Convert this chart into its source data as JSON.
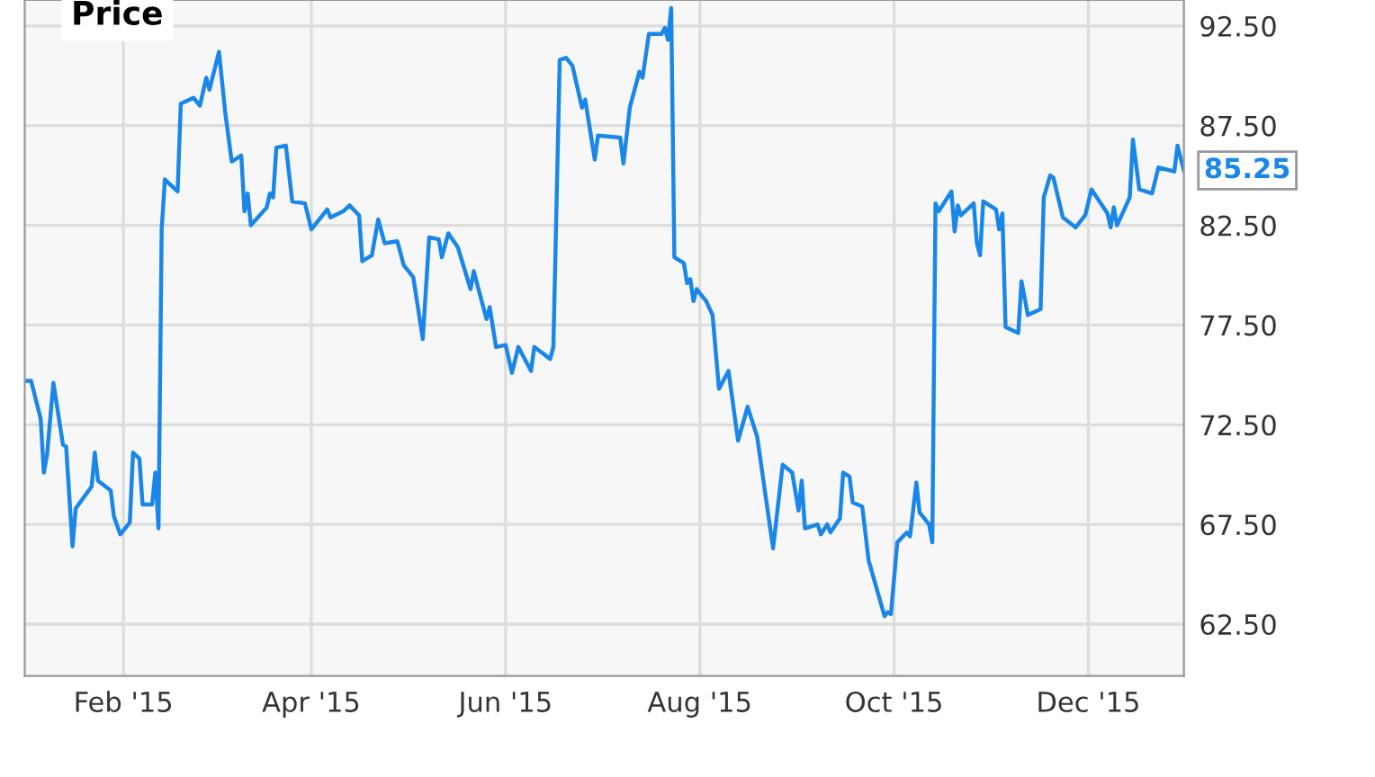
{
  "chart_data": {
    "type": "line",
    "title": "Price",
    "x": [
      "2015-01-01",
      "2015-01-03",
      "2015-01-06",
      "2015-01-07",
      "2015-01-08",
      "2015-01-10",
      "2015-01-13",
      "2015-01-14",
      "2015-01-16",
      "2015-01-17",
      "2015-01-22",
      "2015-01-23",
      "2015-01-24",
      "2015-01-28",
      "2015-01-29",
      "2015-01-31",
      "2015-02-03",
      "2015-02-04",
      "2015-02-06",
      "2015-02-07",
      "2015-02-10",
      "2015-02-11",
      "2015-02-12",
      "2015-02-13",
      "2015-02-14",
      "2015-02-18",
      "2015-02-19",
      "2015-02-23",
      "2015-02-25",
      "2015-02-27",
      "2015-02-28",
      "2015-03-03",
      "2015-03-05",
      "2015-03-07",
      "2015-03-10",
      "2015-03-11",
      "2015-03-12",
      "2015-03-13",
      "2015-03-18",
      "2015-03-19",
      "2015-03-20",
      "2015-03-21",
      "2015-03-24",
      "2015-03-26",
      "2015-03-30",
      "2015-04-01",
      "2015-04-06",
      "2015-04-07",
      "2015-04-11",
      "2015-04-13",
      "2015-04-16",
      "2015-04-17",
      "2015-04-20",
      "2015-04-22",
      "2015-04-24",
      "2015-04-28",
      "2015-04-30",
      "2015-05-03",
      "2015-05-06",
      "2015-05-08",
      "2015-05-11",
      "2015-05-12",
      "2015-05-14",
      "2015-05-17",
      "2015-05-21",
      "2015-05-22",
      "2015-05-26",
      "2015-05-27",
      "2015-05-29",
      "2015-06-01",
      "2015-06-03",
      "2015-06-05",
      "2015-06-09",
      "2015-06-10",
      "2015-06-15",
      "2015-06-16",
      "2015-06-18",
      "2015-06-20",
      "2015-06-22",
      "2015-06-25",
      "2015-06-26",
      "2015-06-29",
      "2015-06-30",
      "2015-07-07",
      "2015-07-08",
      "2015-07-10",
      "2015-07-13",
      "2015-07-14",
      "2015-07-16",
      "2015-07-20",
      "2015-07-21",
      "2015-07-22",
      "2015-07-23",
      "2015-07-24",
      "2015-07-27",
      "2015-07-28",
      "2015-07-29",
      "2015-07-30",
      "2015-07-31",
      "2015-08-03",
      "2015-08-05",
      "2015-08-07",
      "2015-08-10",
      "2015-08-13",
      "2015-08-16",
      "2015-08-19",
      "2015-08-24",
      "2015-08-27",
      "2015-08-30",
      "2015-09-01",
      "2015-09-02",
      "2015-09-03",
      "2015-09-07",
      "2015-09-08",
      "2015-09-10",
      "2015-09-11",
      "2015-09-14",
      "2015-09-15",
      "2015-09-17",
      "2015-09-18",
      "2015-09-21",
      "2015-09-23",
      "2015-09-28",
      "2015-09-29",
      "2015-09-30",
      "2015-10-02",
      "2015-10-05",
      "2015-10-06",
      "2015-10-08",
      "2015-10-09",
      "2015-10-12",
      "2015-10-13",
      "2015-10-14",
      "2015-10-15",
      "2015-10-19",
      "2015-10-20",
      "2015-10-21",
      "2015-10-22",
      "2015-10-26",
      "2015-10-27",
      "2015-10-28",
      "2015-10-29",
      "2015-11-02",
      "2015-11-03",
      "2015-11-04",
      "2015-11-05",
      "2015-11-09",
      "2015-11-10",
      "2015-11-12",
      "2015-11-16",
      "2015-11-17",
      "2015-11-19",
      "2015-11-20",
      "2015-11-23",
      "2015-11-27",
      "2015-11-30",
      "2015-12-02",
      "2015-12-07",
      "2015-12-08",
      "2015-12-09",
      "2015-12-10",
      "2015-12-14",
      "2015-12-15",
      "2015-12-17",
      "2015-12-21",
      "2015-12-23",
      "2015-12-28",
      "2015-12-29",
      "2015-12-31"
    ],
    "series": [
      {
        "color": "#1a87e8",
        "values": [
          74.7,
          74.7,
          72.8,
          70.1,
          71.0,
          74.6,
          71.5,
          71.4,
          66.4,
          68.3,
          69.4,
          71.1,
          69.7,
          69.2,
          67.9,
          67.0,
          67.6,
          71.1,
          70.8,
          68.5,
          68.5,
          70.1,
          67.3,
          82.3,
          84.8,
          84.2,
          88.6,
          88.9,
          88.5,
          89.9,
          89.3,
          91.2,
          88.1,
          85.7,
          86.0,
          83.2,
          84.1,
          82.5,
          83.4,
          84.1,
          83.9,
          86.4,
          86.5,
          83.7,
          83.6,
          82.3,
          83.3,
          82.9,
          83.2,
          83.5,
          83.0,
          80.7,
          81.0,
          82.8,
          81.6,
          81.7,
          80.5,
          79.9,
          76.8,
          81.9,
          81.8,
          80.9,
          82.1,
          81.4,
          79.3,
          80.2,
          77.8,
          78.4,
          76.4,
          76.5,
          75.1,
          76.4,
          75.2,
          76.4,
          75.8,
          76.4,
          90.8,
          90.9,
          90.5,
          88.4,
          88.8,
          85.8,
          87.0,
          86.9,
          85.6,
          88.4,
          90.2,
          89.9,
          92.1,
          92.1,
          92.4,
          91.8,
          93.4,
          80.9,
          80.6,
          79.6,
          79.8,
          78.7,
          79.3,
          78.7,
          78.0,
          74.3,
          75.2,
          71.7,
          73.4,
          71.9,
          66.3,
          70.5,
          70.1,
          68.2,
          69.7,
          67.3,
          67.5,
          67.0,
          67.5,
          67.1,
          67.8,
          70.1,
          69.9,
          68.6,
          68.4,
          65.7,
          62.9,
          63.1,
          63.0,
          66.6,
          67.1,
          66.9,
          69.6,
          68.1,
          67.5,
          66.6,
          83.6,
          83.2,
          84.2,
          82.2,
          83.5,
          83.0,
          83.6,
          81.6,
          81.0,
          83.7,
          83.3,
          82.3,
          83.1,
          77.4,
          77.1,
          79.7,
          78.0,
          78.3,
          83.9,
          85.0,
          84.9,
          82.9,
          82.4,
          83.0,
          84.3,
          83.1,
          82.4,
          83.4,
          82.5,
          83.9,
          86.8,
          84.3,
          84.1,
          85.4,
          85.2,
          86.5,
          85.25
        ]
      }
    ],
    "annotations": [
      {
        "text": "85.25",
        "x": "2015-12-31",
        "y": 85.25
      }
    ],
    "xlim": [
      "2015-01-01",
      "2015-12-31"
    ],
    "xticks": [
      {
        "value": "2015-02-01",
        "label": "Feb '15"
      },
      {
        "value": "2015-04-01",
        "label": "Apr '15"
      },
      {
        "value": "2015-06-01",
        "label": "Jun '15"
      },
      {
        "value": "2015-08-01",
        "label": "Aug '15"
      },
      {
        "value": "2015-10-01",
        "label": "Oct '15"
      },
      {
        "value": "2015-12-01",
        "label": "Dec '15"
      }
    ],
    "ylim": [
      59.9,
      93.8
    ],
    "yticks": [
      {
        "value": 62.5,
        "label": "62.50"
      },
      {
        "value": 67.5,
        "label": "67.50"
      },
      {
        "value": 72.5,
        "label": "72.50"
      },
      {
        "value": 77.5,
        "label": "77.50"
      },
      {
        "value": 82.5,
        "label": "82.50"
      },
      {
        "value": 87.5,
        "label": "87.50"
      },
      {
        "value": 92.5,
        "label": "92.50"
      }
    ],
    "grid": true,
    "legend": false,
    "marker": "none",
    "line_style": "solid"
  }
}
